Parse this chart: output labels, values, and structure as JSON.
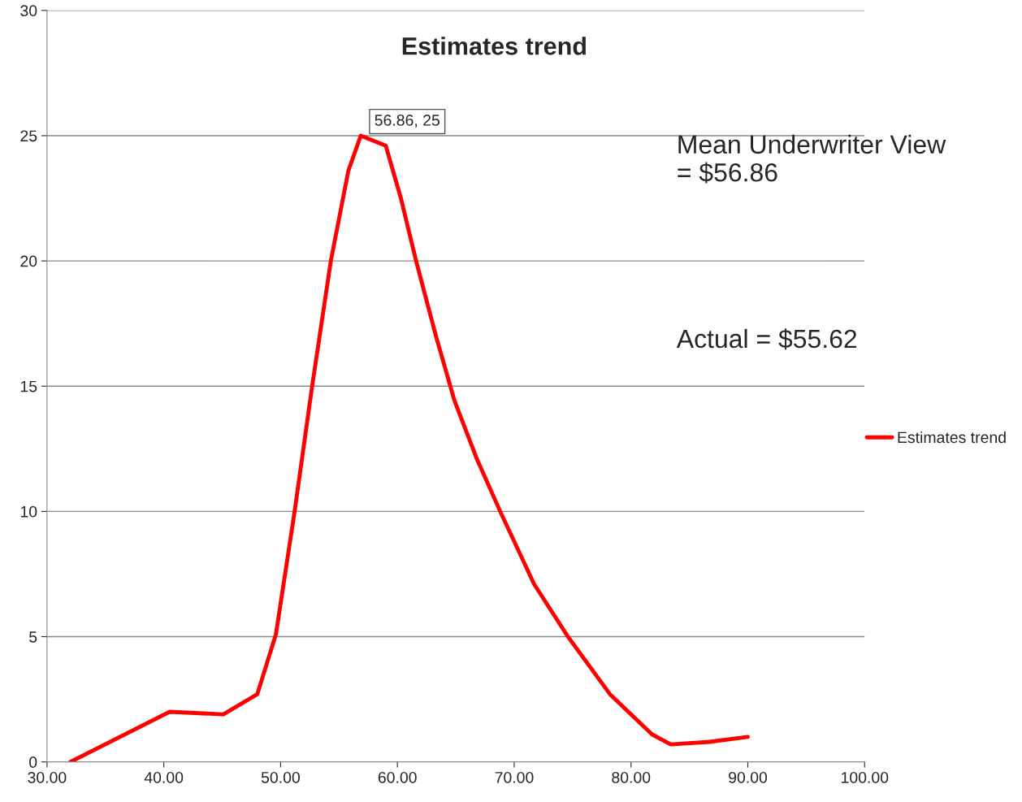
{
  "chart_data": {
    "type": "line",
    "title": "Estimates trend",
    "x": [
      32.0,
      40.5,
      45.1,
      48.0,
      49.6,
      51.2,
      52.7,
      54.3,
      55.8,
      56.86,
      59.0,
      60.3,
      61.6,
      63.3,
      64.9,
      66.8,
      68.8,
      71.7,
      74.6,
      78.2,
      81.8,
      83.4,
      86.7,
      90.0
    ],
    "series": [
      {
        "name": "Estimates trend",
        "color": "#ff0000",
        "values": [
          0,
          2.0,
          1.9,
          2.7,
          5.1,
          10,
          15,
          20,
          23.6,
          25,
          24.6,
          22.5,
          20,
          17,
          14.4,
          12.1,
          10,
          7.1,
          5,
          2.7,
          1.1,
          0.7,
          0.8,
          1.0
        ]
      }
    ],
    "xlim": [
      30,
      100
    ],
    "xticks": [
      {
        "value": 30,
        "label": "30.00"
      },
      {
        "value": 40,
        "label": "40.00"
      },
      {
        "value": 50,
        "label": "50.00"
      },
      {
        "value": 60,
        "label": "60.00"
      },
      {
        "value": 70,
        "label": "70.00"
      },
      {
        "value": 80,
        "label": "80.00"
      },
      {
        "value": 90,
        "label": "90.00"
      },
      {
        "value": 100,
        "label": "100.00"
      }
    ],
    "ylim": [
      0,
      30
    ],
    "yticks": [
      0,
      5,
      10,
      15,
      20,
      25,
      30
    ],
    "grid": "y",
    "legend": "right",
    "marker": "none",
    "line_style": "solid",
    "annotations": [
      {
        "text": "56.86, 25",
        "x": 56.86,
        "y": 25
      },
      "Mean Underwriter View = $56.86",
      "Actual = $55.62"
    ]
  }
}
